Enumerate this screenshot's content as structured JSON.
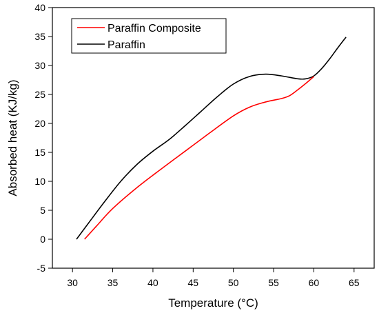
{
  "chart_data": {
    "type": "line",
    "title": "",
    "xlabel": "Temperature (°C)",
    "ylabel": "Absorbed heat (KJ/kg)",
    "xlim": [
      27.5,
      67.5
    ],
    "ylim": [
      -5,
      40
    ],
    "xticks": [
      30,
      35,
      40,
      45,
      50,
      55,
      60,
      65
    ],
    "yticks": [
      -5,
      0,
      5,
      10,
      15,
      20,
      25,
      30,
      35,
      40
    ],
    "xtick_labels": [
      "30",
      "35",
      "40",
      "45",
      "50",
      "55",
      "60",
      "65"
    ],
    "ytick_labels": [
      "-5",
      "0",
      "5",
      "10",
      "15",
      "20",
      "25",
      "30",
      "35",
      "40"
    ],
    "grid": false,
    "legend_position": "top-left",
    "series": [
      {
        "name": "Paraffin Composite",
        "color": "#ff0000",
        "x": [
          31.5,
          33,
          35,
          38,
          41,
          44,
          47,
          50,
          52,
          54,
          56,
          57,
          58,
          59,
          60
        ],
        "y": [
          0,
          2.3,
          5.3,
          8.9,
          12.1,
          15.2,
          18.3,
          21.3,
          22.8,
          23.7,
          24.3,
          24.8,
          25.8,
          26.9,
          28.1
        ]
      },
      {
        "name": "Paraffin",
        "color": "#000000",
        "x": [
          30.5,
          32,
          34,
          36,
          38,
          40,
          42,
          44,
          46,
          48,
          50,
          52,
          54,
          56,
          58,
          59,
          60,
          61,
          62,
          63,
          64
        ],
        "y": [
          0,
          2.8,
          6.5,
          10,
          12.9,
          15.2,
          17.2,
          19.6,
          22.1,
          24.6,
          26.8,
          28.1,
          28.5,
          28.2,
          27.7,
          27.7,
          28.2,
          29.5,
          31.2,
          33.1,
          34.9
        ]
      }
    ]
  }
}
